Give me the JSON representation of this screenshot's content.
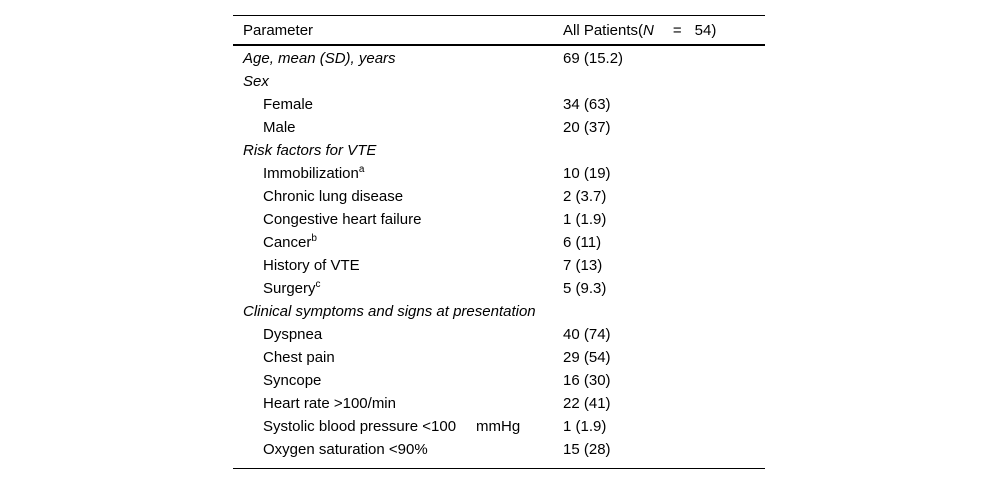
{
  "page": {
    "background_color": "#ffffff",
    "text_color": "#000000"
  },
  "table": {
    "header": {
      "parameter": "Parameter",
      "group_prefix": "All Patients(",
      "n_symbol": "N",
      "equals": "=",
      "n_value": "54)"
    },
    "rows": [
      {
        "style": "top-italic",
        "label": "Age, mean (SD), years",
        "value": "69 (15.2)"
      },
      {
        "style": "section",
        "label": "Sex",
        "value": ""
      },
      {
        "style": "item",
        "label": "Female",
        "value": "34 (63)"
      },
      {
        "style": "item",
        "label": "Male",
        "value": "20 (37)"
      },
      {
        "style": "section",
        "label": "Risk factors for VTE",
        "value": ""
      },
      {
        "style": "item",
        "label": "Immobilization",
        "sup": "a",
        "value": "10 (19)"
      },
      {
        "style": "item",
        "label": "Chronic lung disease",
        "value": "2 (3.7)"
      },
      {
        "style": "item",
        "label": "Congestive heart failure",
        "value": "1 (1.9)"
      },
      {
        "style": "item",
        "label": "Cancer",
        "sup": "b",
        "value": "6 (11)"
      },
      {
        "style": "item",
        "label": "History of VTE",
        "value": "7 (13)"
      },
      {
        "style": "item",
        "label": "Surgery",
        "sup": "c",
        "value": "5 (9.3)"
      },
      {
        "style": "section",
        "label": "Clinical symptoms and signs at presentation",
        "value": ""
      },
      {
        "style": "item",
        "label": "Dyspnea",
        "value": "40 (74)"
      },
      {
        "style": "item",
        "label": "Chest pain",
        "value": "29 (54)"
      },
      {
        "style": "item",
        "label": "Syncope",
        "value": "16 (30)"
      },
      {
        "style": "item",
        "label": "Heart rate >100/min",
        "value": "22 (41)"
      },
      {
        "style": "item",
        "label": "Systolic blood pressure <100",
        "unit": "mmHg",
        "value": "1 (1.9)"
      },
      {
        "style": "item",
        "label": "Oxygen saturation <90%",
        "value": "15 (28)"
      }
    ]
  }
}
